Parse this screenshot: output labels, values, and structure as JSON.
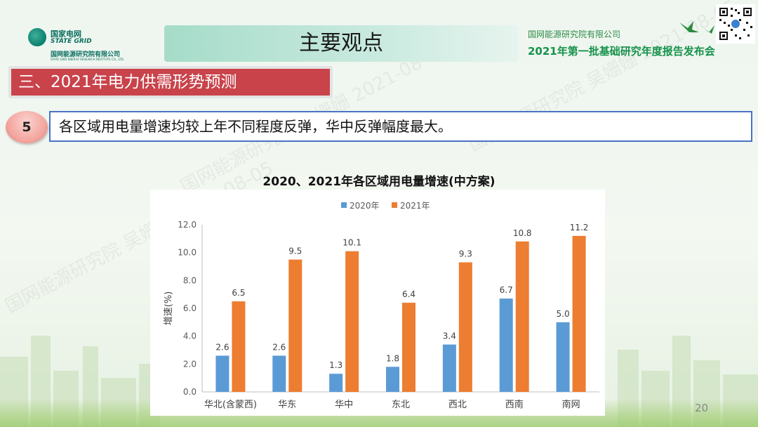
{
  "logo": {
    "cn": "国家电网",
    "en": "STATE GRID",
    "sub": "国网能源研究院有限公司",
    "sub_en": "STATE GRID ENERGY RESEARCH INSTITUTE CO., LTD."
  },
  "header": {
    "title": "主要观点",
    "org": "国网能源研究院有限公司",
    "event": "2021年第一批基础研究年度报告发布会"
  },
  "section": {
    "label": "三、2021年电力供需形势预测"
  },
  "point": {
    "number": "5",
    "text": "各区域用电量增速均较上年不同程度反弹，华中反弹幅度最大。"
  },
  "page": {
    "number": "20"
  },
  "watermark": {
    "text": "国网能源研究院 吴姗姗 2021-08-05"
  },
  "colors": {
    "series_2020": "#5b9bd5",
    "series_2021": "#ed7d31",
    "section_bg": "#c9434b",
    "title_bg": "#a6dcc9"
  },
  "chart_data": {
    "type": "bar",
    "title": "2020、2021年各区域用电量增速(中方案)",
    "ylabel": "增速(%)",
    "xlabel": "",
    "categories": [
      "华北(含蒙西)",
      "华东",
      "华中",
      "东北",
      "西北",
      "西南",
      "南网"
    ],
    "series": [
      {
        "name": "2020年",
        "values": [
          2.6,
          2.6,
          1.3,
          1.8,
          3.4,
          6.7,
          5.0
        ],
        "labels": [
          "2.6",
          "2.6",
          "1.3",
          "1.8",
          "3.4",
          "6.7",
          "5.0"
        ]
      },
      {
        "name": "2021年",
        "values": [
          6.5,
          9.5,
          10.1,
          6.4,
          9.3,
          10.8,
          11.2
        ],
        "labels": [
          "6.5",
          "9.5",
          "10.1",
          "6.4",
          "9.3",
          "10.8",
          "11.2"
        ]
      }
    ],
    "ylim": [
      0,
      12
    ],
    "yticks": [
      "0.0",
      "2.0",
      "4.0",
      "6.0",
      "8.0",
      "10.0",
      "12.0"
    ],
    "legend": "top-center",
    "grid": false
  }
}
